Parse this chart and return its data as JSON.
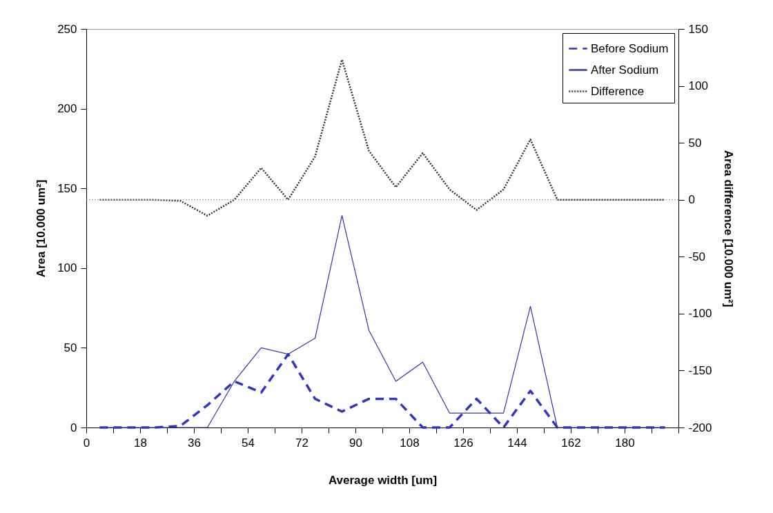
{
  "chart_data": {
    "type": "line",
    "xlabel": "Average width [um]",
    "ylabel": "Area [10.000 um²]",
    "y2label": "Area difference [10.000 um²]",
    "x": [
      4.5,
      13.5,
      22.5,
      31.5,
      40.5,
      49.5,
      58.5,
      67.5,
      76.5,
      85.5,
      94.5,
      103.5,
      112.5,
      121.5,
      130.5,
      139.5,
      148.5,
      157.5,
      166.5,
      175.5,
      184.5,
      193.5
    ],
    "series": [
      {
        "name": "Before Sodium",
        "color": "#3333cc",
        "line_style": "dashed",
        "values": [
          0,
          0,
          0,
          1,
          14,
          29,
          22,
          46,
          18,
          10,
          18,
          18,
          0,
          0,
          18,
          0,
          23,
          0,
          0,
          0,
          0,
          0
        ]
      },
      {
        "name": "After Sodium",
        "color": "#3333aa",
        "line_style": "solid",
        "values": [
          0,
          0,
          0,
          0,
          0,
          29,
          50,
          46,
          56,
          133,
          61,
          29,
          41,
          9,
          9,
          9,
          76,
          0,
          0,
          0,
          0,
          0
        ]
      },
      {
        "name": "Difference",
        "color": "#333333",
        "line_style": "dotted",
        "axis": "y2",
        "values": [
          0,
          0,
          0,
          -1,
          -14,
          0,
          28,
          0,
          38,
          123,
          43,
          11,
          41,
          9,
          -9,
          9,
          53,
          0,
          0,
          0,
          0,
          0
        ]
      }
    ],
    "xlim": [
      0,
      198
    ],
    "xticks": [
      0,
      {
        "value": 9,
        "label": null
      },
      18,
      {
        "value": 27,
        "label": null
      },
      36,
      {
        "value": 45,
        "label": null
      },
      54,
      {
        "value": 63,
        "label": null
      },
      72,
      {
        "value": 81,
        "label": null
      },
      90,
      {
        "value": 99,
        "label": null
      },
      108,
      {
        "value": 117,
        "label": null
      },
      126,
      {
        "value": 135,
        "label": null
      },
      144,
      {
        "value": 153,
        "label": null
      },
      162,
      {
        "value": 171,
        "label": null
      },
      180,
      {
        "value": 189,
        "label": null
      },
      {
        "value": 198,
        "label": null
      }
    ],
    "ylim": [
      0,
      250
    ],
    "yticks": [
      0,
      50,
      100,
      150,
      200,
      250
    ],
    "y2lim": [
      -200,
      150
    ],
    "y2ticks": [
      -200,
      -150,
      -100,
      -50,
      0,
      50,
      100,
      150
    ],
    "ref_lines": [
      {
        "axis": "y2",
        "value": 0,
        "color": "#999999",
        "line_style": "dotted"
      }
    ],
    "legend": "top right",
    "grid": false
  }
}
